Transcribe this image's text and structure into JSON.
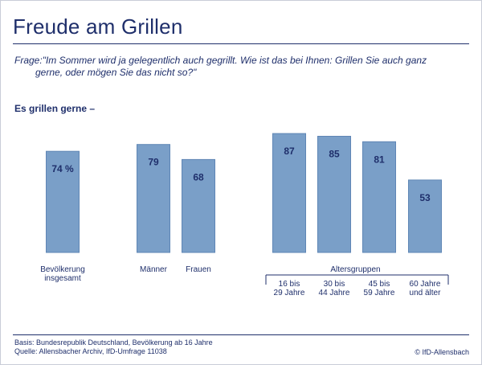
{
  "title": "Freude am Grillen",
  "question": {
    "prefix": "Frage:",
    "line1": "\"Im Sommer wird ja gelegentlich auch gegrillt. Wie ist das bei Ihnen: Grillen Sie auch ganz",
    "line2": "gerne, oder mögen Sie das nicht so?\""
  },
  "subhead": "Es grillen gerne –",
  "footer": {
    "basis": "Basis: Bundesrepublik Deutschland, Bevölkerung ab 16 Jahre",
    "quelle": "Quelle: Allensbacher Archiv, IfD-Umfrage 11038",
    "copyright": "© IfD-Allensbach"
  },
  "colors": {
    "bar": "#7a9fc8",
    "bar_edge": "#5f86b5",
    "text": "#1f2f6b"
  },
  "chart_data": {
    "type": "bar",
    "unit": "%",
    "ylim": [
      0,
      100
    ],
    "categories": [
      {
        "label": [
          "Bevölkerung",
          "insgesamt"
        ],
        "value": 74,
        "value_label": "74 %"
      },
      {
        "label": [
          "Männer"
        ],
        "value": 79,
        "value_label": "79"
      },
      {
        "label": [
          "Frauen"
        ],
        "value": 68,
        "value_label": "68"
      },
      {
        "label": [
          "16 bis",
          "29 Jahre"
        ],
        "value": 87,
        "value_label": "87"
      },
      {
        "label": [
          "30 bis",
          "44 Jahre"
        ],
        "value": 85,
        "value_label": "85"
      },
      {
        "label": [
          "45 bis",
          "59 Jahre"
        ],
        "value": 81,
        "value_label": "81"
      },
      {
        "label": [
          "60 Jahre",
          "und älter"
        ],
        "value": 53,
        "value_label": "53"
      }
    ],
    "group_label": "Altersgruppen",
    "grid": false,
    "legend": "none"
  }
}
